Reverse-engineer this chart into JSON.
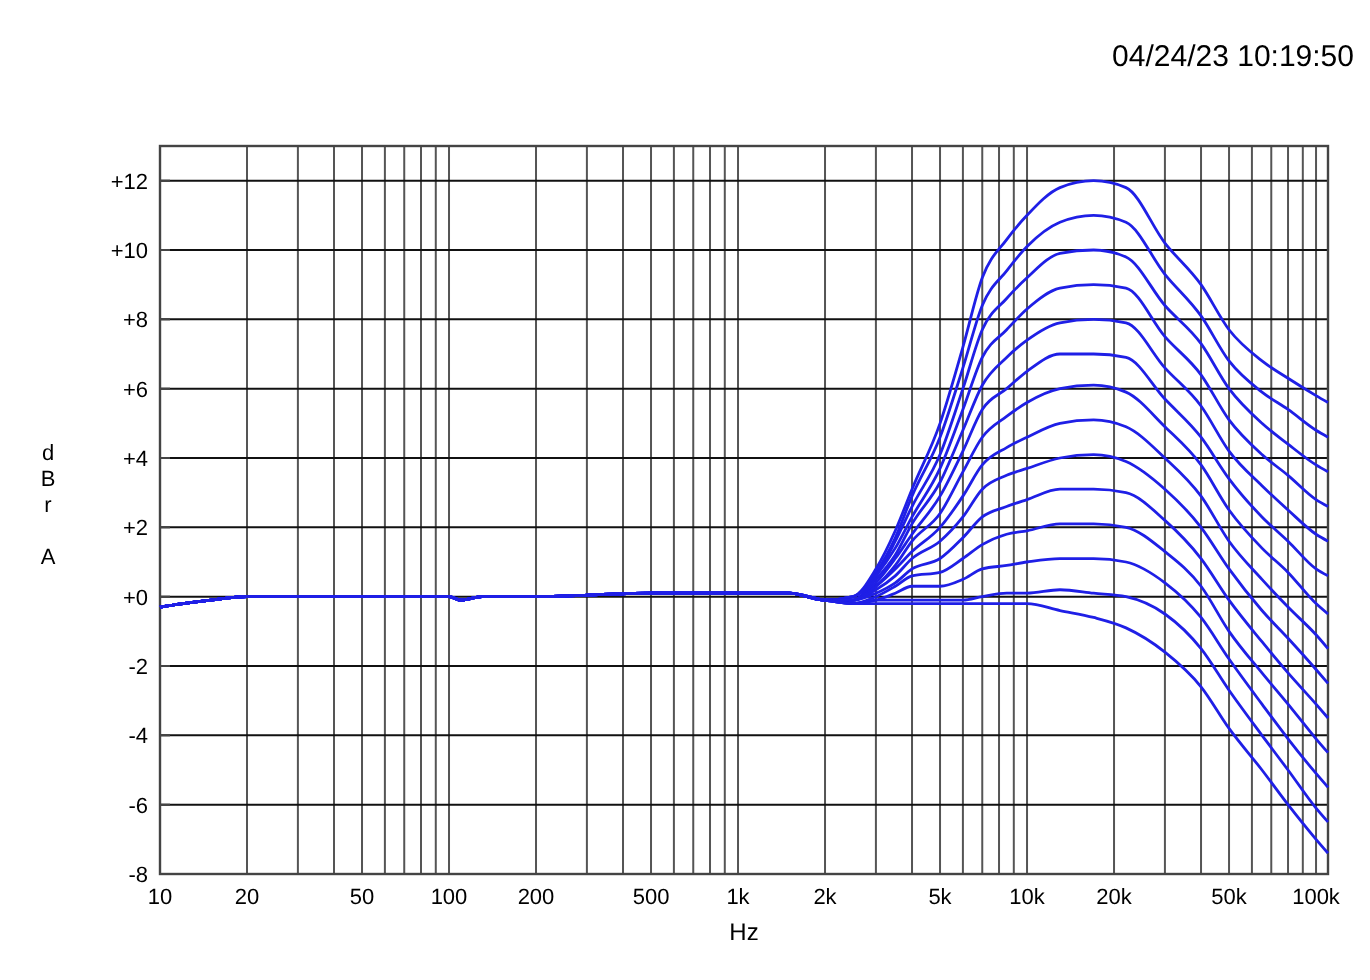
{
  "chart_data": {
    "type": "line",
    "xlabel": "Hz",
    "ylabel": "dBr A",
    "annotations": [
      "04/24/23 10:19:50"
    ],
    "log": "x",
    "grid": true,
    "marker": "none",
    "line_style": "solid",
    "x": [
      10,
      12,
      15,
      20,
      50,
      100,
      110,
      130,
      200,
      500,
      1000,
      1500,
      2000,
      2500,
      3000,
      3500,
      4000,
      5000,
      6000,
      7000,
      8500,
      10000,
      13000,
      17000,
      22000,
      30000,
      40000,
      50000,
      65000,
      80000,
      100000,
      110000
    ],
    "xlim": [
      10,
      110000
    ],
    "xticks": [
      10,
      20,
      {
        "value": 30,
        "label": null
      },
      {
        "value": 40,
        "label": null
      },
      50,
      {
        "value": 60,
        "label": null
      },
      {
        "value": 70,
        "label": null
      },
      {
        "value": 80,
        "label": null
      },
      {
        "value": 90,
        "label": null
      },
      100,
      200,
      {
        "value": 300,
        "label": null
      },
      {
        "value": 400,
        "label": null
      },
      500,
      {
        "value": 600,
        "label": null
      },
      {
        "value": 700,
        "label": null
      },
      {
        "value": 800,
        "label": null
      },
      {
        "value": 900,
        "label": null
      },
      {
        "value": 1000,
        "label": "1k"
      },
      {
        "value": 2000,
        "label": "2k"
      },
      {
        "value": 3000,
        "label": null
      },
      {
        "value": 4000,
        "label": null
      },
      {
        "value": 5000,
        "label": "5k"
      },
      {
        "value": 6000,
        "label": null
      },
      {
        "value": 7000,
        "label": null
      },
      {
        "value": 8000,
        "label": null
      },
      {
        "value": 9000,
        "label": null
      },
      {
        "value": 10000,
        "label": "10k"
      },
      {
        "value": 20000,
        "label": "20k"
      },
      {
        "value": 30000,
        "label": null
      },
      {
        "value": 40000,
        "label": null
      },
      {
        "value": 50000,
        "label": "50k"
      },
      {
        "value": 60000,
        "label": null
      },
      {
        "value": 70000,
        "label": null
      },
      {
        "value": 80000,
        "label": null
      },
      {
        "value": 90000,
        "label": null
      },
      {
        "value": 100000,
        "label": "100k"
      }
    ],
    "ylim": [
      -8,
      13
    ],
    "yticks": [
      -8,
      -6,
      -4,
      -2,
      {
        "value": 0,
        "label": "+0"
      },
      {
        "value": 2,
        "label": "+2"
      },
      {
        "value": 4,
        "label": "+4"
      },
      {
        "value": 6,
        "label": "+6"
      },
      {
        "value": 8,
        "label": "+8"
      },
      {
        "value": 10,
        "label": "+10"
      },
      {
        "value": 12,
        "label": "+12"
      }
    ],
    "series": [
      {
        "color": "#1f1fe6",
        "values": [
          -0.3,
          -0.2,
          -0.1,
          0,
          0,
          0,
          -0.1,
          0,
          0,
          0.1,
          0.1,
          0.1,
          -0.1,
          0.0,
          0.8,
          1.9,
          3.1,
          5.0,
          7.2,
          9.2,
          10.3,
          11.0,
          11.8,
          12.0,
          11.8,
          10.2,
          9.0,
          7.7,
          6.8,
          6.3,
          5.8,
          5.6
        ]
      },
      {
        "color": "#1f1fe6",
        "values": [
          -0.3,
          -0.2,
          -0.1,
          0,
          0,
          0,
          -0.1,
          0,
          0,
          0.1,
          0.1,
          0.1,
          -0.1,
          0.0,
          0.7,
          1.7,
          2.9,
          4.6,
          6.6,
          8.4,
          9.4,
          10.1,
          10.8,
          11.0,
          10.8,
          9.3,
          8.1,
          6.8,
          5.9,
          5.4,
          4.8,
          4.6
        ]
      },
      {
        "color": "#1f1fe6",
        "values": [
          -0.3,
          -0.2,
          -0.1,
          0,
          0,
          0,
          -0.1,
          0,
          0,
          0.1,
          0.1,
          0.1,
          -0.1,
          0.0,
          0.6,
          1.6,
          2.6,
          4.1,
          6.0,
          7.7,
          8.6,
          9.2,
          9.9,
          10.0,
          9.8,
          8.4,
          7.3,
          6.0,
          5.0,
          4.4,
          3.8,
          3.6
        ]
      },
      {
        "color": "#1f1fe6",
        "values": [
          -0.3,
          -0.2,
          -0.1,
          0,
          0,
          0,
          -0.1,
          0,
          0,
          0.1,
          0.1,
          0.1,
          -0.1,
          -0.1,
          0.6,
          1.4,
          2.3,
          3.7,
          5.4,
          6.9,
          7.7,
          8.3,
          8.9,
          9.0,
          8.9,
          7.5,
          6.4,
          5.1,
          4.1,
          3.5,
          2.8,
          2.6
        ]
      },
      {
        "color": "#1f1fe6",
        "values": [
          -0.3,
          -0.2,
          -0.1,
          0,
          0,
          0,
          -0.1,
          0,
          0,
          0.1,
          0.1,
          0.1,
          -0.1,
          -0.1,
          0.5,
          1.2,
          2.1,
          3.3,
          4.8,
          6.1,
          6.9,
          7.4,
          7.9,
          8.0,
          7.9,
          6.6,
          5.5,
          4.2,
          3.2,
          2.5,
          1.8,
          1.6
        ]
      },
      {
        "color": "#1f1fe6",
        "values": [
          -0.3,
          -0.2,
          -0.1,
          0,
          0,
          0,
          -0.1,
          0,
          0,
          0.1,
          0.1,
          0.1,
          -0.1,
          -0.1,
          0.4,
          1.1,
          1.8,
          2.9,
          4.2,
          5.4,
          6.0,
          6.5,
          7.0,
          7.0,
          6.9,
          5.7,
          4.6,
          3.4,
          2.3,
          1.6,
          0.8,
          0.6
        ]
      },
      {
        "color": "#1f1fe6",
        "values": [
          -0.3,
          -0.2,
          -0.1,
          0,
          0,
          0,
          -0.1,
          0,
          0,
          0.1,
          0.1,
          0.1,
          -0.1,
          -0.1,
          0.3,
          0.9,
          1.6,
          2.4,
          3.6,
          4.6,
          5.2,
          5.6,
          6.0,
          6.1,
          5.9,
          4.9,
          3.8,
          2.5,
          1.4,
          0.7,
          -0.2,
          -0.5
        ]
      },
      {
        "color": "#1f1fe6",
        "values": [
          -0.3,
          -0.2,
          -0.1,
          0,
          0,
          0,
          -0.1,
          0,
          0,
          0.1,
          0.1,
          0.1,
          -0.1,
          -0.1,
          0.3,
          0.8,
          1.3,
          2.0,
          2.9,
          3.8,
          4.3,
          4.6,
          5.0,
          5.1,
          4.9,
          4.0,
          2.9,
          1.6,
          0.5,
          -0.3,
          -1.1,
          -1.5
        ]
      },
      {
        "color": "#1f1fe6",
        "values": [
          -0.3,
          -0.2,
          -0.1,
          0,
          0,
          0,
          -0.1,
          0,
          0,
          0.1,
          0.1,
          0.1,
          -0.1,
          -0.1,
          0.2,
          0.6,
          1.1,
          1.6,
          2.3,
          3.1,
          3.5,
          3.7,
          4.0,
          4.1,
          3.9,
          3.1,
          2.0,
          0.8,
          -0.4,
          -1.2,
          -2.1,
          -2.5
        ]
      },
      {
        "color": "#1f1fe6",
        "values": [
          -0.3,
          -0.2,
          -0.1,
          0,
          0,
          0,
          -0.1,
          0,
          0,
          0.1,
          0.1,
          0.1,
          -0.1,
          -0.1,
          0.1,
          0.4,
          0.8,
          1.1,
          1.7,
          2.3,
          2.6,
          2.8,
          3.1,
          3.1,
          3.0,
          2.2,
          1.1,
          -0.1,
          -1.3,
          -2.2,
          -3.1,
          -3.5
        ]
      },
      {
        "color": "#1f1fe6",
        "values": [
          -0.3,
          -0.2,
          -0.1,
          0,
          0,
          0,
          -0.1,
          0,
          0,
          0.1,
          0.1,
          0.1,
          -0.1,
          -0.2,
          0.0,
          0.3,
          0.6,
          0.7,
          1.1,
          1.5,
          1.8,
          1.9,
          2.1,
          2.1,
          2.0,
          1.3,
          0.3,
          -1.0,
          -2.2,
          -3.1,
          -4.1,
          -4.5
        ]
      },
      {
        "color": "#1f1fe6",
        "values": [
          -0.3,
          -0.2,
          -0.1,
          0,
          0,
          0,
          -0.1,
          0,
          0,
          0.1,
          0.1,
          0.1,
          -0.1,
          -0.2,
          -0.1,
          0.1,
          0.3,
          0.3,
          0.5,
          0.8,
          0.9,
          1.0,
          1.1,
          1.1,
          1.0,
          0.4,
          -0.6,
          -1.8,
          -3.1,
          -4.1,
          -5.1,
          -5.5
        ]
      },
      {
        "color": "#1f1fe6",
        "values": [
          -0.3,
          -0.2,
          -0.1,
          0,
          0,
          0,
          -0.1,
          0,
          0,
          0.1,
          0.1,
          0.1,
          -0.1,
          -0.2,
          -0.1,
          -0.1,
          -0.1,
          -0.1,
          -0.1,
          0.0,
          0.1,
          0.1,
          0.2,
          0.1,
          0.0,
          -0.5,
          -1.5,
          -2.7,
          -4.0,
          -5.0,
          -6.1,
          -6.5
        ]
      },
      {
        "color": "#1f1fe6",
        "values": [
          -0.3,
          -0.2,
          -0.1,
          0,
          0,
          0,
          -0.1,
          0,
          0,
          0.1,
          0.1,
          0.1,
          -0.1,
          -0.2,
          -0.2,
          -0.2,
          -0.2,
          -0.2,
          -0.2,
          -0.2,
          -0.2,
          -0.2,
          -0.4,
          -0.6,
          -0.9,
          -1.6,
          -2.6,
          -3.8,
          -5.0,
          -6.0,
          -7.0,
          -7.4
        ]
      }
    ]
  }
}
